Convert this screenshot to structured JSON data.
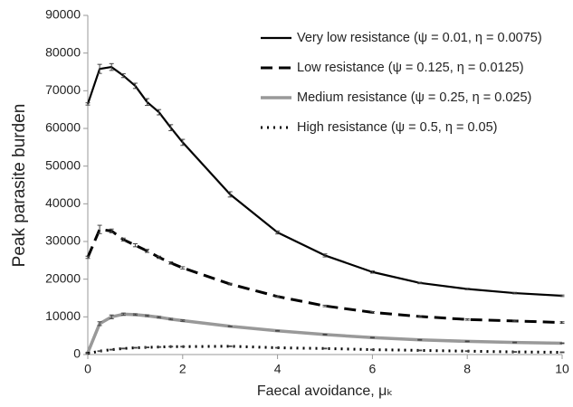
{
  "chart_data": {
    "type": "line",
    "x_label": "Faecal avoidance, μₖ",
    "y_label": "Peak parasite burden",
    "x": [
      0,
      0.25,
      0.5,
      0.75,
      1,
      1.25,
      1.5,
      1.75,
      2,
      3,
      4,
      5,
      6,
      7,
      8,
      9,
      10
    ],
    "xlim": [
      0,
      10
    ],
    "xticks": [
      0,
      2,
      4,
      6,
      8,
      10
    ],
    "ylim": [
      0,
      90000
    ],
    "yticks": [
      0,
      10000,
      20000,
      30000,
      40000,
      50000,
      60000,
      70000,
      80000,
      90000
    ],
    "grid": false,
    "legend": "upper right",
    "series": [
      {
        "name": "Very low resistance (ψ = 0.01, η = 0.0075)",
        "color": "#000000",
        "dash": "solid",
        "values": [
          66500,
          75800,
          76300,
          74000,
          71300,
          67000,
          64300,
          60200,
          56300,
          42500,
          32400,
          26300,
          21900,
          19000,
          17400,
          16300,
          15600
        ],
        "errors": [
          300,
          1200,
          900,
          500,
          700,
          900,
          700,
          800,
          800,
          700,
          400,
          400,
          300,
          200,
          200,
          200,
          200
        ]
      },
      {
        "name": "Low resistance (ψ = 0.125, η = 0.0125)",
        "color": "#000000",
        "dash": "dashed",
        "values": [
          25800,
          33200,
          32800,
          30500,
          29000,
          27500,
          25800,
          24300,
          23000,
          18700,
          15400,
          12900,
          11200,
          10100,
          9300,
          8900,
          8500
        ],
        "errors": [
          300,
          1100,
          500,
          400,
          400,
          400,
          300,
          300,
          300,
          200,
          200,
          200,
          200,
          200,
          200,
          200,
          200
        ]
      },
      {
        "name": "Medium resistance (ψ = 0.25, η = 0.025)",
        "color": "#999999",
        "dash": "solid",
        "values": [
          500,
          8200,
          10000,
          10700,
          10600,
          10300,
          9900,
          9400,
          9000,
          7500,
          6300,
          5300,
          4500,
          3900,
          3500,
          3200,
          3000
        ],
        "errors": [
          100,
          500,
          500,
          300,
          200,
          200,
          200,
          200,
          200,
          100,
          100,
          100,
          100,
          100,
          100,
          100,
          100
        ]
      },
      {
        "name": "High resistance (ψ = 0.5, η = 0.05)",
        "color": "#000000",
        "dash": "dotted",
        "values": [
          300,
          900,
          1300,
          1600,
          1800,
          1900,
          2000,
          2100,
          2100,
          2200,
          1800,
          1600,
          1300,
          1100,
          900,
          700,
          600
        ],
        "errors": [
          50,
          100,
          100,
          100,
          100,
          100,
          100,
          100,
          100,
          100,
          100,
          100,
          100,
          100,
          100,
          100,
          100
        ]
      }
    ]
  }
}
